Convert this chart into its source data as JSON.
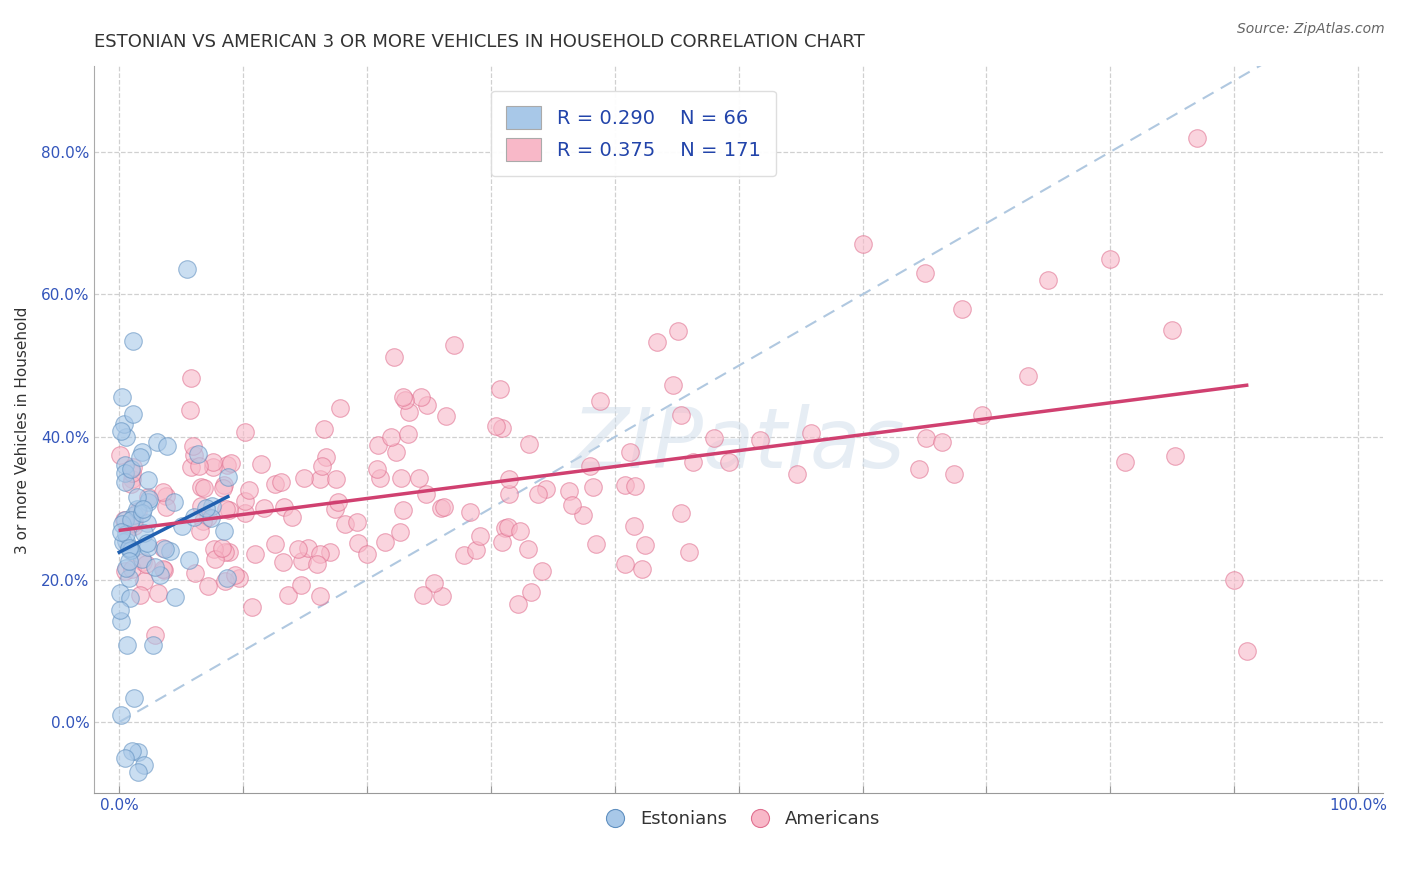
{
  "title": "ESTONIAN VS AMERICAN 3 OR MORE VEHICLES IN HOUSEHOLD CORRELATION CHART",
  "source_text": "Source: ZipAtlas.com",
  "ylabel": "3 or more Vehicles in Household",
  "xlim": [
    -0.02,
    1.02
  ],
  "ylim": [
    -0.1,
    0.92
  ],
  "xtick_positions": [
    0.0,
    0.1,
    0.2,
    0.3,
    0.4,
    0.5,
    0.6,
    0.7,
    0.8,
    0.9,
    1.0
  ],
  "xtick_labels_show": {
    "0.0": "0.0%",
    "1.0": "100.0%"
  },
  "ytick_positions": [
    0.0,
    0.2,
    0.4,
    0.6,
    0.8
  ],
  "ytick_labels": [
    "0.0%",
    "20.0%",
    "40.0%",
    "60.0%",
    "80.0%"
  ],
  "watermark": "ZIPatlas",
  "blue_color": "#a8c8e8",
  "blue_edge_color": "#6090c0",
  "pink_color": "#f8b8c8",
  "pink_edge_color": "#e07090",
  "blue_line_color": "#2060b0",
  "pink_line_color": "#d04070",
  "diagonal_color": "#b0c8e0",
  "R_estonian": 0.29,
  "N_estonian": 66,
  "R_american": 0.375,
  "N_american": 171,
  "seed": 42,
  "title_fontsize": 13,
  "axis_label_fontsize": 11,
  "tick_fontsize": 11,
  "legend_fontsize": 13,
  "source_fontsize": 10
}
